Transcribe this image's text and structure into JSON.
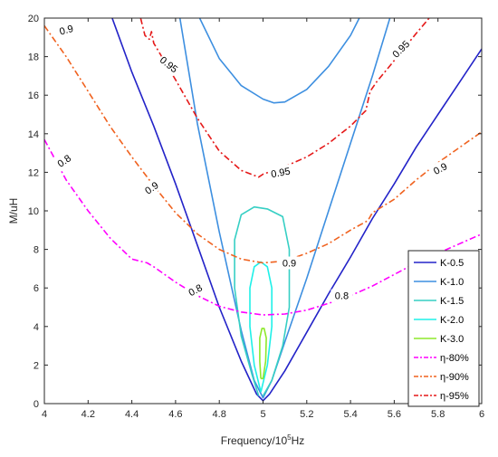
{
  "chart_data": {
    "type": "line",
    "xlabel_main": "Frequency/10",
    "xlabel_exp": "5",
    "xlabel_unit": "Hz",
    "ylabel": "M/uH",
    "xlim": [
      4,
      6
    ],
    "ylim": [
      0,
      20
    ],
    "xticks": [
      "4",
      "4.2",
      "4.4",
      "4.6",
      "4.8",
      "5",
      "5.2",
      "5.4",
      "5.6",
      "5.8",
      "6"
    ],
    "yticks": [
      "0",
      "2",
      "4",
      "6",
      "8",
      "10",
      "12",
      "14",
      "16",
      "18",
      "20"
    ],
    "grid": false,
    "legend_position": "bottom-right",
    "series": [
      {
        "name": "K-0.5",
        "color": "#2323c8",
        "dash": "solid",
        "lines": [
          [
            [
              4.31,
              20
            ],
            [
              4.4,
              17.2
            ],
            [
              4.5,
              14.4
            ],
            [
              4.6,
              11.4
            ],
            [
              4.7,
              8.2
            ],
            [
              4.8,
              5.0
            ],
            [
              4.9,
              2.2
            ],
            [
              4.97,
              0.5
            ],
            [
              5.0,
              0.15
            ],
            [
              5.03,
              0.5
            ],
            [
              5.1,
              1.7
            ],
            [
              5.2,
              3.7
            ],
            [
              5.3,
              5.7
            ],
            [
              5.4,
              7.6
            ],
            [
              5.5,
              9.6
            ],
            [
              5.6,
              11.4
            ],
            [
              5.7,
              13.3
            ],
            [
              5.8,
              15.0
            ],
            [
              5.9,
              16.7
            ],
            [
              6.0,
              18.4
            ]
          ]
        ]
      },
      {
        "name": "K-1.0",
        "color": "#3d8fe0",
        "dash": "solid",
        "lines": [
          [
            [
              4.62,
              20
            ],
            [
              4.7,
              14.5
            ],
            [
              4.8,
              8.9
            ],
            [
              4.9,
              3.8
            ],
            [
              4.96,
              1.2
            ],
            [
              5.0,
              0.3
            ],
            [
              5.04,
              1.2
            ],
            [
              5.1,
              3.2
            ],
            [
              5.2,
              6.5
            ],
            [
              5.3,
              10.0
            ],
            [
              5.4,
              13.5
            ],
            [
              5.5,
              17.0
            ],
            [
              5.58,
              20
            ]
          ],
          [
            [
              4.71,
              20
            ],
            [
              4.8,
              17.9
            ],
            [
              4.9,
              16.5
            ],
            [
              5.0,
              15.8
            ],
            [
              5.05,
              15.6
            ],
            [
              5.1,
              15.65
            ],
            [
              5.2,
              16.3
            ],
            [
              5.3,
              17.5
            ],
            [
              5.4,
              19.1
            ],
            [
              5.44,
              20
            ]
          ]
        ]
      },
      {
        "name": "K-1.5",
        "color": "#36cfc4",
        "dash": "solid",
        "lines": [
          [
            [
              4.98,
              0.4
            ],
            [
              4.95,
              1.5
            ],
            [
              4.9,
              3.5
            ],
            [
              4.87,
              6.0
            ],
            [
              4.87,
              8.5
            ],
            [
              4.9,
              9.8
            ],
            [
              4.96,
              10.2
            ],
            [
              5.02,
              10.1
            ],
            [
              5.09,
              9.7
            ],
            [
              5.12,
              8.0
            ],
            [
              5.12,
              5.0
            ],
            [
              5.09,
              3.0
            ],
            [
              5.04,
              1.2
            ],
            [
              5.0,
              0.4
            ]
          ]
        ]
      },
      {
        "name": "K-2.0",
        "color": "#1ef0e8",
        "dash": "solid",
        "lines": [
          [
            [
              4.99,
              0.6
            ],
            [
              4.96,
              2.0
            ],
            [
              4.94,
              4.0
            ],
            [
              4.94,
              6.0
            ],
            [
              4.96,
              7.1
            ],
            [
              4.99,
              7.35
            ],
            [
              5.02,
              7.1
            ],
            [
              5.04,
              6.0
            ],
            [
              5.04,
              4.0
            ],
            [
              5.02,
              2.0
            ],
            [
              4.99,
              0.6
            ]
          ]
        ]
      },
      {
        "name": "K-3.0",
        "color": "#8de82b",
        "dash": "solid",
        "lines": [
          [
            [
              4.99,
              1.3
            ],
            [
              4.985,
              2.2
            ],
            [
              4.985,
              3.4
            ],
            [
              4.995,
              3.9
            ],
            [
              5.005,
              3.9
            ],
            [
              5.015,
              3.4
            ],
            [
              5.012,
              2.2
            ],
            [
              5.0,
              1.3
            ],
            [
              4.99,
              1.3
            ]
          ]
        ]
      },
      {
        "name": "η-80%",
        "color": "#ff00ff",
        "dash": "dashdot",
        "lines": [
          [
            [
              4.0,
              13.7
            ],
            [
              4.1,
              11.6
            ],
            [
              4.2,
              10.0
            ],
            [
              4.3,
              8.6
            ],
            [
              4.4,
              7.5
            ],
            [
              4.47,
              7.3
            ],
            [
              4.5,
              7.1
            ],
            [
              4.6,
              6.3
            ],
            [
              4.7,
              5.6
            ],
            [
              4.8,
              5.05
            ],
            [
              4.9,
              4.75
            ],
            [
              5.0,
              4.6
            ],
            [
              5.1,
              4.65
            ],
            [
              5.2,
              4.85
            ],
            [
              5.3,
              5.2
            ],
            [
              5.4,
              5.6
            ],
            [
              5.5,
              6.1
            ],
            [
              5.6,
              6.7
            ],
            [
              5.7,
              7.3
            ],
            [
              5.8,
              7.8
            ],
            [
              5.9,
              8.3
            ],
            [
              6.0,
              8.8
            ]
          ]
        ]
      },
      {
        "name": "η-90%",
        "color": "#f0621f",
        "dash": "dashdot",
        "lines": [
          [
            [
              4.0,
              19.6
            ],
            [
              4.1,
              18.0
            ],
            [
              4.2,
              16.2
            ],
            [
              4.3,
              14.4
            ],
            [
              4.4,
              12.8
            ],
            [
              4.5,
              11.3
            ],
            [
              4.6,
              9.9
            ],
            [
              4.7,
              8.8
            ],
            [
              4.8,
              8.0
            ],
            [
              4.9,
              7.5
            ],
            [
              5.0,
              7.3
            ],
            [
              5.1,
              7.4
            ],
            [
              5.2,
              7.8
            ],
            [
              5.3,
              8.3
            ],
            [
              5.4,
              9.0
            ],
            [
              5.48,
              9.5
            ],
            [
              5.5,
              9.9
            ],
            [
              5.6,
              10.6
            ],
            [
              5.7,
              11.6
            ],
            [
              5.8,
              12.5
            ],
            [
              5.9,
              13.3
            ],
            [
              6.0,
              14.1
            ]
          ]
        ]
      },
      {
        "name": "η-95%",
        "color": "#e51919",
        "dash": "dashdot",
        "lines": [
          [
            [
              4.44,
              20
            ],
            [
              4.46,
              19.1
            ],
            [
              4.48,
              18.9
            ],
            [
              4.49,
              19.3
            ],
            [
              4.5,
              18.7
            ],
            [
              4.6,
              16.8
            ],
            [
              4.7,
              14.8
            ],
            [
              4.8,
              13.1
            ],
            [
              4.9,
              12.1
            ],
            [
              4.98,
              11.75
            ],
            [
              5.0,
              11.9
            ],
            [
              5.1,
              12.3
            ],
            [
              5.2,
              12.8
            ],
            [
              5.3,
              13.5
            ],
            [
              5.4,
              14.4
            ],
            [
              5.47,
              15.2
            ],
            [
              5.49,
              16.2
            ],
            [
              5.52,
              16.7
            ],
            [
              5.6,
              17.8
            ],
            [
              5.7,
              19.2
            ],
            [
              5.76,
              20
            ]
          ]
        ]
      }
    ],
    "annotations": [
      {
        "text": "0.9",
        "x": 4.1,
        "y": 19.4,
        "angle": -16,
        "color": "#000000"
      },
      {
        "text": "0.8",
        "x": 4.09,
        "y": 12.6,
        "angle": -35,
        "color": "#000000"
      },
      {
        "text": "0.9",
        "x": 4.49,
        "y": 11.2,
        "angle": -35,
        "color": "#000000"
      },
      {
        "text": "0.95",
        "x": 4.57,
        "y": 17.6,
        "angle": 38,
        "color": "#000000"
      },
      {
        "text": "0.95",
        "x": 5.08,
        "y": 12.0,
        "angle": -10,
        "color": "#000000"
      },
      {
        "text": "0.95",
        "x": 5.63,
        "y": 18.4,
        "angle": -45,
        "color": "#000000"
      },
      {
        "text": "0.9",
        "x": 5.12,
        "y": 7.3,
        "angle": 0,
        "color": "#000000"
      },
      {
        "text": "0.9",
        "x": 5.81,
        "y": 12.2,
        "angle": -28,
        "color": "#000000"
      },
      {
        "text": "0.8",
        "x": 4.69,
        "y": 5.9,
        "angle": -28,
        "color": "#000000"
      },
      {
        "text": "0.8",
        "x": 5.36,
        "y": 5.6,
        "angle": 0,
        "color": "#000000"
      }
    ]
  }
}
